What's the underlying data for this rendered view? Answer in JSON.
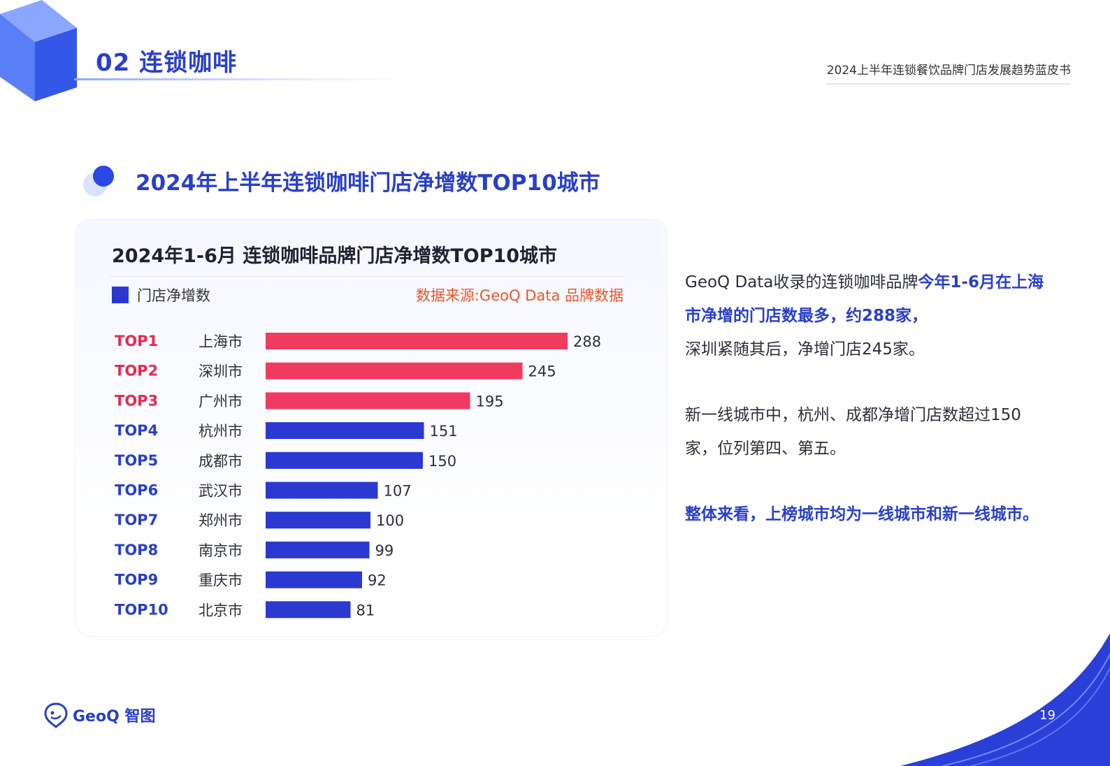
{
  "header": {
    "section_title": "02 连锁咖啡",
    "report_title": "2024上半年连锁餐饮品牌门店发展趋势蓝皮书"
  },
  "subtitle": "2024年上半年连锁咖啡门店净增数TOP10城市",
  "chart_data": {
    "type": "bar",
    "orientation": "horizontal",
    "title": "2024年1-6月 连锁咖啡品牌门店净增数TOP10城市",
    "source": "数据来源:GeoQ Data 品牌数据",
    "series": [
      {
        "name": "门店净增数",
        "color": "#2b39d0"
      }
    ],
    "highlight_color": "#ef3b5e",
    "ranks": [
      "TOP1",
      "TOP2",
      "TOP3",
      "TOP4",
      "TOP5",
      "TOP6",
      "TOP7",
      "TOP8",
      "TOP9",
      "TOP10"
    ],
    "categories": [
      "上海市",
      "深圳市",
      "广州市",
      "杭州市",
      "成都市",
      "武汉市",
      "郑州市",
      "南京市",
      "重庆市",
      "北京市"
    ],
    "values": [
      288,
      245,
      195,
      151,
      150,
      107,
      100,
      99,
      92,
      81
    ],
    "highlighted": [
      true,
      true,
      true,
      false,
      false,
      false,
      false,
      false,
      false,
      false
    ],
    "xlim": [
      0,
      288
    ],
    "grid": false,
    "legend_position": "top-left"
  },
  "text": {
    "p1_normal": "GeoQ  Data收录的连锁咖啡品牌",
    "p1_highlight": "今年1-6月在上海市净增的门店数最多，约288家，",
    "p1_tail": "深圳紧随其后，净增门店245家。",
    "p2": "新一线城市中，杭州、成都净增门店数超过150家，位列第四、第五。",
    "p3": "整体来看，上榜城市均为一线城市和新一线城市。"
  },
  "footer": {
    "logo_text": "GeoQ 智图",
    "page_number": "19"
  }
}
